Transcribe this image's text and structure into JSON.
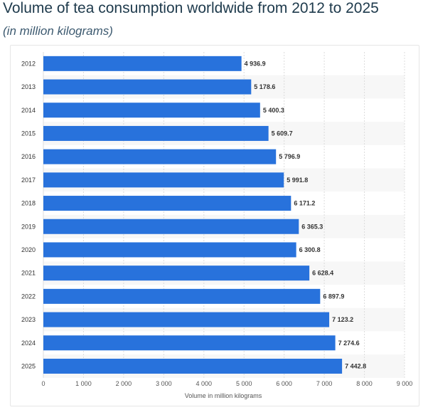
{
  "chart_data": {
    "type": "bar",
    "orientation": "horizontal",
    "title": "Volume of tea consumption worldwide from 2012 to 2025",
    "subtitle": "(in million kilograms)",
    "categories": [
      "2012",
      "2013",
      "2014",
      "2015",
      "2016",
      "2017",
      "2018",
      "2019",
      "2020",
      "2021",
      "2022",
      "2023",
      "2024",
      "2025"
    ],
    "values": [
      4936.9,
      5178.6,
      5400.3,
      5609.7,
      5796.9,
      5991.8,
      6171.2,
      6365.3,
      6300.8,
      6628.4,
      6897.9,
      7123.2,
      7274.6,
      7442.8
    ],
    "value_labels": [
      "4 936.9",
      "5 178.6",
      "5 400.3",
      "5 609.7",
      "5 796.9",
      "5 991.8",
      "6 171.2",
      "6 365.3",
      "6 300.8",
      "6 628.4",
      "6 897.9",
      "7 123.2",
      "7 274.6",
      "7 442.8"
    ],
    "xlabel": "Volume in million kilograms",
    "ylabel": "",
    "xlim": [
      0,
      9000
    ],
    "ticks": [
      0,
      1000,
      2000,
      3000,
      4000,
      5000,
      6000,
      7000,
      8000,
      9000
    ],
    "tick_labels": [
      "0",
      "1 000",
      "2 000",
      "3 000",
      "4 000",
      "5 000",
      "6 000",
      "7 000",
      "8 000",
      "9 000"
    ],
    "grid": true,
    "legend": "none",
    "colors": {
      "bar": "#2872dc",
      "band": "#f7f7f7",
      "grid": "#dcdcdc"
    }
  }
}
